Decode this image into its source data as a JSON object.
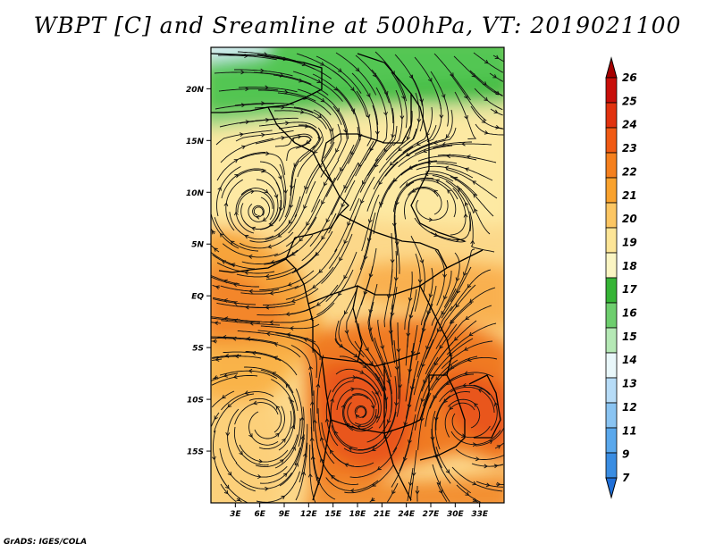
{
  "title": "WBPT [C] and Sreamline at 500hPa, VT: 2019021100",
  "credit": "GrADS: IGES/COLA",
  "map": {
    "lat_labels": [
      "20N",
      "15N",
      "10N",
      "5N",
      "EQ",
      "5S",
      "10S",
      "15S"
    ],
    "lat_values": [
      20,
      15,
      10,
      5,
      0,
      -5,
      -10,
      -15
    ],
    "lon_labels": [
      "3E",
      "6E",
      "9E",
      "12E",
      "15E",
      "18E",
      "21E",
      "24E",
      "27E",
      "30E",
      "33E"
    ],
    "lon_values": [
      3,
      6,
      9,
      12,
      15,
      18,
      21,
      24,
      27,
      30,
      33
    ],
    "lon_range": [
      0,
      36
    ],
    "lat_range": [
      -20,
      24
    ]
  },
  "colorbar": {
    "labels": [
      "26",
      "25",
      "24",
      "23",
      "22",
      "21",
      "20",
      "19",
      "18",
      "17",
      "16",
      "15",
      "14",
      "13",
      "12",
      "11",
      "9",
      "7"
    ],
    "colors": [
      "#a50000",
      "#c80f0a",
      "#e1320f",
      "#f05a14",
      "#f5801e",
      "#f9a22e",
      "#fcc663",
      "#fde597",
      "#fbf5c3",
      "#36b436",
      "#6ece6e",
      "#b5e8b5",
      "#e9f7fa",
      "#b7dcf7",
      "#8ac4f2",
      "#5aa8ec",
      "#3a8de2",
      "#1f6fd8"
    ]
  }
}
